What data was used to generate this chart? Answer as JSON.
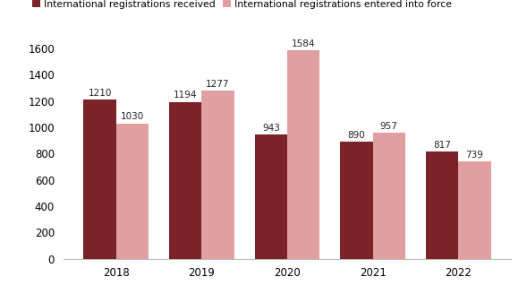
{
  "years": [
    "2018",
    "2019",
    "2020",
    "2021",
    "2022"
  ],
  "received": [
    1210,
    1194,
    943,
    890,
    817
  ],
  "entered": [
    1030,
    1277,
    1584,
    957,
    739
  ],
  "color_received": "#7b2328",
  "color_entered": "#e0a0a0",
  "legend_received": "International registrations received",
  "legend_entered": "International registrations entered into force",
  "ylim": [
    0,
    1700
  ],
  "yticks": [
    0,
    200,
    400,
    600,
    800,
    1000,
    1200,
    1400,
    1600
  ],
  "bar_width": 0.38,
  "label_fontsize": 7.5,
  "legend_fontsize": 7.8,
  "tick_fontsize": 8.5,
  "background_color": "#ffffff"
}
